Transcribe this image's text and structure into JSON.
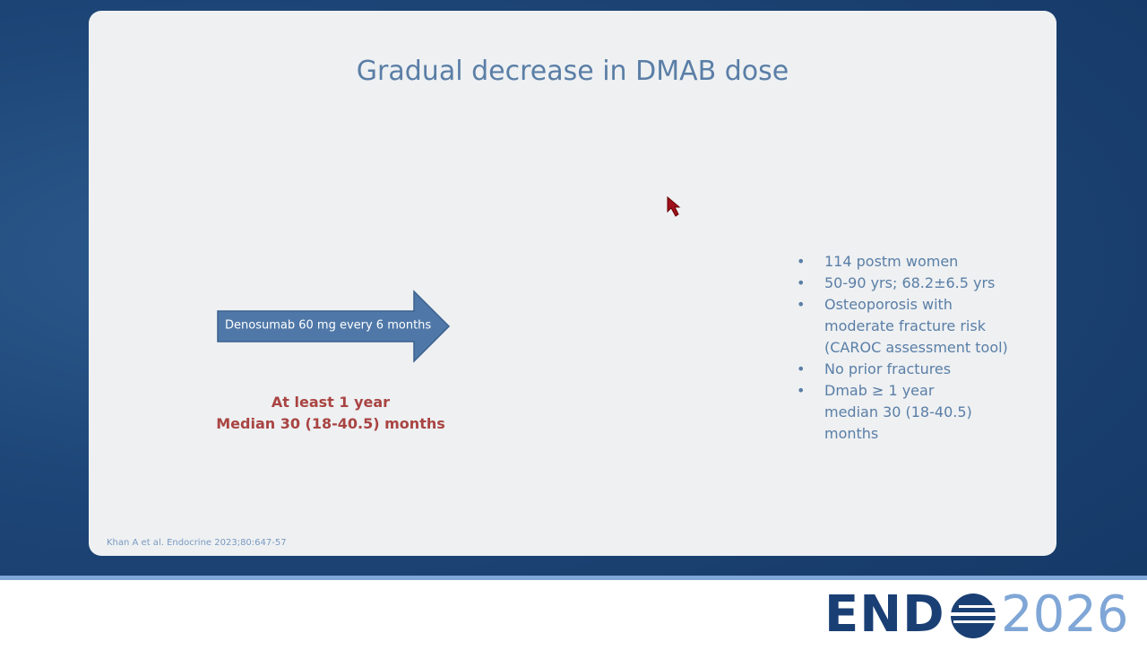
{
  "slide": {
    "title": "Gradual decrease in DMAB dose",
    "arrow_label": "Denosumab 60 mg every 6 months",
    "duration": [
      "At least 1 year",
      "Median 30 (18-40.5) months"
    ],
    "bullets": [
      [
        "114 postm women"
      ],
      [
        "50-90 yrs; 68.2±6.5 yrs"
      ],
      [
        "Osteoporosis with",
        "moderate fracture risk",
        "(CAROC assessment tool)"
      ],
      [
        "No prior fractures"
      ],
      [
        "Dmab ≥ 1 year",
        "median 30 (18-40.5)",
        "months"
      ]
    ],
    "citation": "Khan A et al. Endocrine 2023;80:647-57"
  },
  "logo": {
    "left": "END",
    "right": "2026"
  }
}
